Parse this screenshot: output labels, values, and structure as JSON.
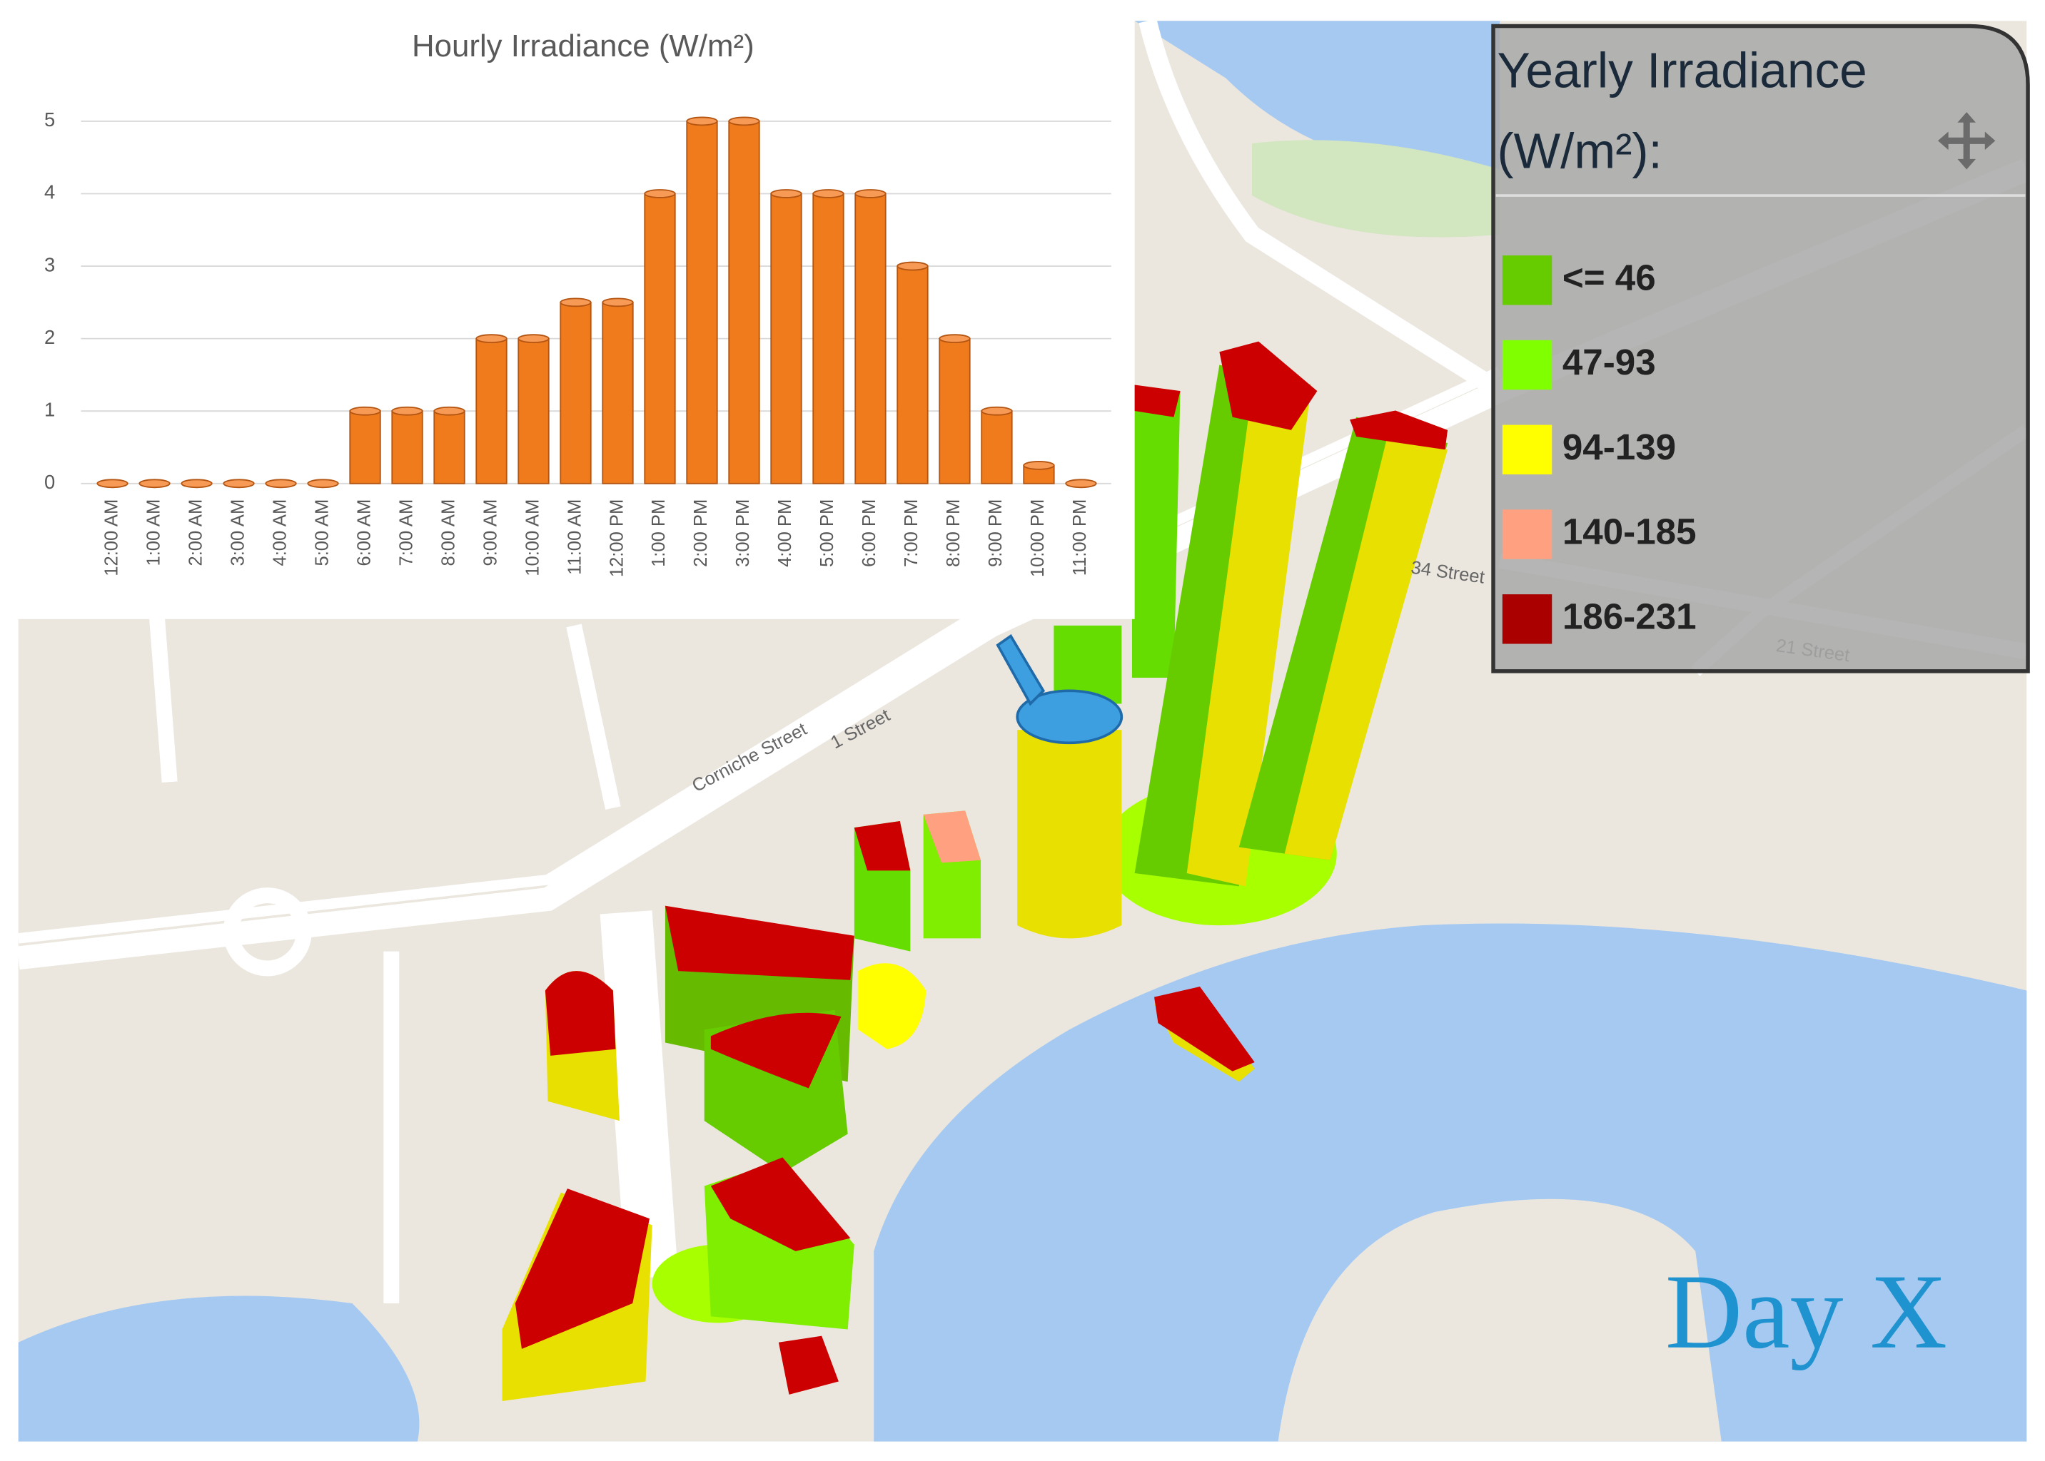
{
  "chart_data": {
    "type": "bar",
    "title": "Hourly Irradiance (W/m²)",
    "categories": [
      "12:00 AM",
      "1:00 AM",
      "2:00 AM",
      "3:00 AM",
      "4:00 AM",
      "5:00 AM",
      "6:00 AM",
      "7:00 AM",
      "8:00 AM",
      "9:00 AM",
      "10:00 AM",
      "11:00 AM",
      "12:00 PM",
      "1:00 PM",
      "2:00 PM",
      "3:00 PM",
      "4:00 PM",
      "5:00 PM",
      "6:00 PM",
      "7:00 PM",
      "8:00 PM",
      "9:00 PM",
      "10:00 PM",
      "11:00 PM"
    ],
    "values": [
      0,
      0,
      0,
      0,
      0,
      0,
      1,
      1,
      1,
      2,
      2,
      2.5,
      2.5,
      4,
      5,
      5,
      4,
      4,
      4,
      3,
      2,
      1,
      0.25,
      0
    ],
    "color": "#f07b1d",
    "ylim": [
      0,
      5
    ],
    "yticks": [
      0,
      1,
      2,
      3,
      4,
      5
    ],
    "grid": true
  },
  "legend": {
    "title_lines": [
      "Yearly Irradiance",
      "(W/m²):"
    ],
    "items": [
      {
        "label": "<= 46",
        "color": "#66cc00"
      },
      {
        "label": "47-93",
        "color": "#80ff00"
      },
      {
        "label": "94-139",
        "color": "#ffff00"
      },
      {
        "label": "140-185",
        "color": "#ffa080"
      },
      {
        "label": "186-231",
        "color": "#aa0000"
      }
    ]
  },
  "map_labels": [
    "Corniche Street",
    "1 Street",
    "34 Street",
    "21 Street"
  ],
  "overlay_label": "Day X"
}
